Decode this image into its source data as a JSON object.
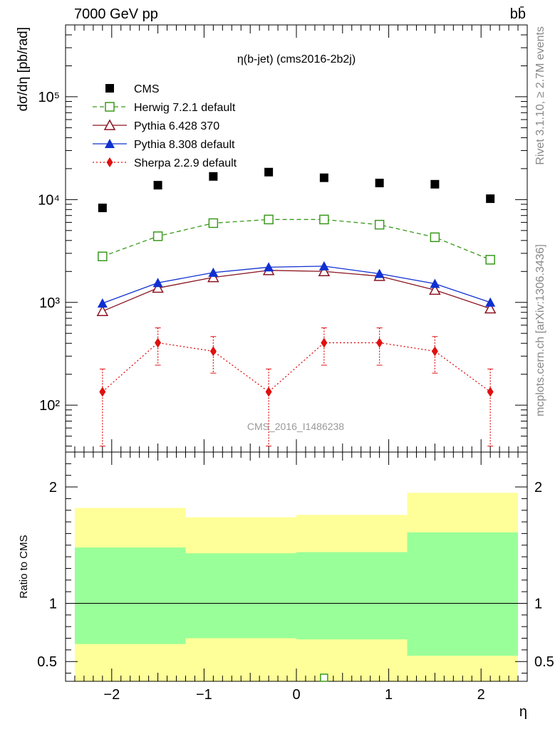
{
  "header": {
    "left": "7000 GeV pp",
    "right": "bb̄"
  },
  "side_text": {
    "rivet": "Rivet 3.1.10, ≥ 2.7M events",
    "mcplots": "mcplots.cern.ch [arXiv:1306.3436]"
  },
  "chart_data": [
    {
      "type": "scatter",
      "title": "η(b-jet) (cms2016-2b2j)",
      "watermark": "CMS_2016_I1486238",
      "ylabel": "dσ/dη [pb/rad]",
      "yscale": "log",
      "ylim": [
        35,
        500000
      ],
      "xlim": [
        -2.5,
        2.5
      ],
      "x": [
        -2.1,
        -1.5,
        -0.9,
        -0.3,
        0.3,
        0.9,
        1.5,
        2.1
      ],
      "y_tick_labels": [
        "10²",
        "10³",
        "10⁴",
        "10⁵"
      ],
      "series": [
        {
          "name": "CMS",
          "color": "#000000",
          "marker": "square",
          "values": [
            8300,
            13800,
            16800,
            18500,
            16300,
            14500,
            14100,
            10200
          ]
        },
        {
          "name": "Herwig 7.2.1 default",
          "color": "#3a9a1c",
          "marker": "open-square",
          "line": "dashed",
          "values": [
            2800,
            4400,
            5900,
            6400,
            6400,
            5700,
            4300,
            2600
          ]
        },
        {
          "name": "Pythia 6.428 370",
          "color": "#8a1420",
          "marker": "open-triangle",
          "line": "solid",
          "values": [
            820,
            1380,
            1750,
            2050,
            2000,
            1800,
            1320,
            870
          ]
        },
        {
          "name": "Pythia 8.308 default",
          "color": "#1030d0",
          "marker": "triangle",
          "line": "solid",
          "values": [
            980,
            1550,
            1950,
            2200,
            2250,
            1900,
            1520,
            1000
          ]
        },
        {
          "name": "Sherpa 2.2.9 default",
          "color": "#e01010",
          "marker": "diamond",
          "line": "dotted",
          "values": [
            135,
            405,
            335,
            135,
            405,
            405,
            335,
            135
          ],
          "err_lo": [
            40,
            245,
            205,
            40,
            245,
            245,
            205,
            40
          ],
          "err_hi": [
            225,
            565,
            465,
            225,
            565,
            565,
            465,
            225
          ]
        }
      ]
    },
    {
      "type": "area",
      "ylabel": "Ratio to CMS",
      "xlabel": "η",
      "ylim": [
        0.33,
        2.3
      ],
      "xlim": [
        -2.5,
        2.5
      ],
      "x_tick_labels": [
        "−2",
        "−1",
        "0",
        "1",
        "2"
      ],
      "y_tick_labels": [
        "0.5",
        "1",
        "2"
      ],
      "bands": [
        {
          "xlo": -2.4,
          "xhi": -1.2,
          "yellow": [
            0.33,
            1.82
          ],
          "green": [
            0.65,
            1.48
          ]
        },
        {
          "xlo": -1.2,
          "xhi": 0.0,
          "yellow": [
            0.33,
            1.74
          ],
          "green": [
            0.7,
            1.43
          ]
        },
        {
          "xlo": 0.0,
          "xhi": 1.2,
          "yellow": [
            0.33,
            1.76
          ],
          "green": [
            0.69,
            1.44
          ]
        },
        {
          "xlo": 1.2,
          "xhi": 2.4,
          "yellow": [
            0.33,
            1.95
          ],
          "green": [
            0.55,
            1.61
          ]
        }
      ],
      "offscale_marker": {
        "series": "Herwig 7.2.1 default",
        "x": 0.3
      }
    }
  ]
}
